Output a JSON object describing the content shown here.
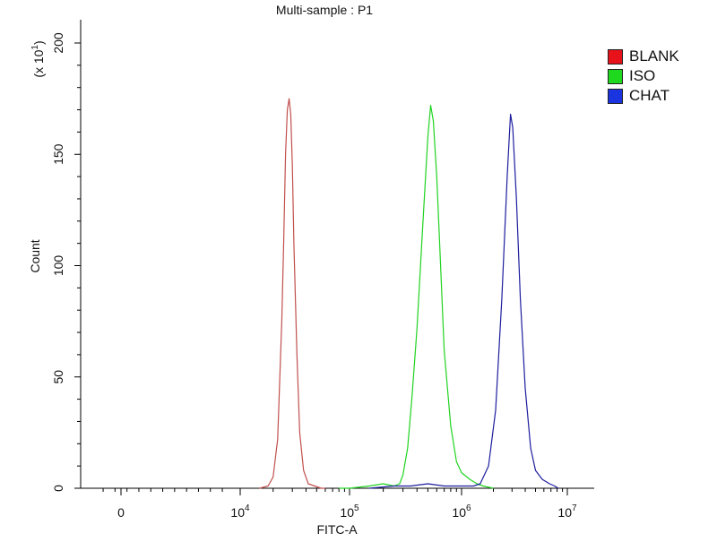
{
  "chart_data": {
    "type": "line",
    "title": "Multi-sample : P1",
    "xlabel": "FITC-A",
    "ylabel": "Count",
    "y_multiplier_label": "(x 10",
    "y_multiplier_exp": "1",
    "y_multiplier_close": ")",
    "x_scale": "biexponential (linear near 0, log above 10^4)",
    "x_ticks": [
      {
        "value": 0,
        "base": "0",
        "exp": ""
      },
      {
        "value": 10000,
        "base": "10",
        "exp": "4"
      },
      {
        "value": 100000,
        "base": "10",
        "exp": "5"
      },
      {
        "value": 1000000,
        "base": "10",
        "exp": "6"
      },
      {
        "value": 10000000,
        "base": "10",
        "exp": "7"
      }
    ],
    "ylim": [
      0,
      200
    ],
    "y_ticks": [
      {
        "value": 0,
        "label": "0"
      },
      {
        "value": 50,
        "label": "50"
      },
      {
        "value": 100,
        "label": "100"
      },
      {
        "value": 150,
        "label": "150"
      },
      {
        "value": 200,
        "label": "200"
      }
    ],
    "grid": false,
    "legend_position": "right",
    "series": [
      {
        "name": "BLANK",
        "color": "#c0504d",
        "swatch": "#e8121b",
        "x": [
          15000,
          18000,
          20000,
          22000,
          24000,
          25000,
          26000,
          27000,
          28000,
          29000,
          30000,
          31000,
          33000,
          35000,
          38000,
          42000,
          48000,
          55000,
          60000
        ],
        "y": [
          0,
          1,
          5,
          22,
          75,
          110,
          150,
          170,
          175,
          168,
          145,
          110,
          60,
          25,
          8,
          2,
          1,
          0,
          0
        ]
      },
      {
        "name": "ISO",
        "color": "#21d321",
        "swatch": "#1fd91f",
        "x": [
          80000,
          100000,
          150000,
          200000,
          250000,
          280000,
          300000,
          330000,
          360000,
          400000,
          450000,
          500000,
          530000,
          560000,
          600000,
          650000,
          700000,
          800000,
          900000,
          1000000,
          1200000,
          1400000,
          1600000,
          2000000
        ],
        "y": [
          0,
          0,
          1,
          2,
          1,
          2,
          6,
          18,
          40,
          72,
          118,
          158,
          172,
          165,
          140,
          100,
          62,
          28,
          12,
          7,
          4,
          2,
          1,
          0
        ]
      },
      {
        "name": "CHAT",
        "color": "#1d1d9e",
        "swatch": "#1a35e0",
        "x": [
          150000,
          250000,
          350000,
          500000,
          700000,
          900000,
          1100000,
          1300000,
          1500000,
          1800000,
          2100000,
          2400000,
          2700000,
          2900000,
          3050000,
          3300000,
          3600000,
          4000000,
          4500000,
          5000000,
          5800000,
          6800000,
          7600000,
          8200000
        ],
        "y": [
          0,
          1,
          1,
          2,
          1,
          1,
          1,
          1,
          2,
          10,
          35,
          85,
          140,
          168,
          162,
          130,
          85,
          45,
          18,
          8,
          4,
          2,
          1,
          0
        ]
      }
    ]
  }
}
